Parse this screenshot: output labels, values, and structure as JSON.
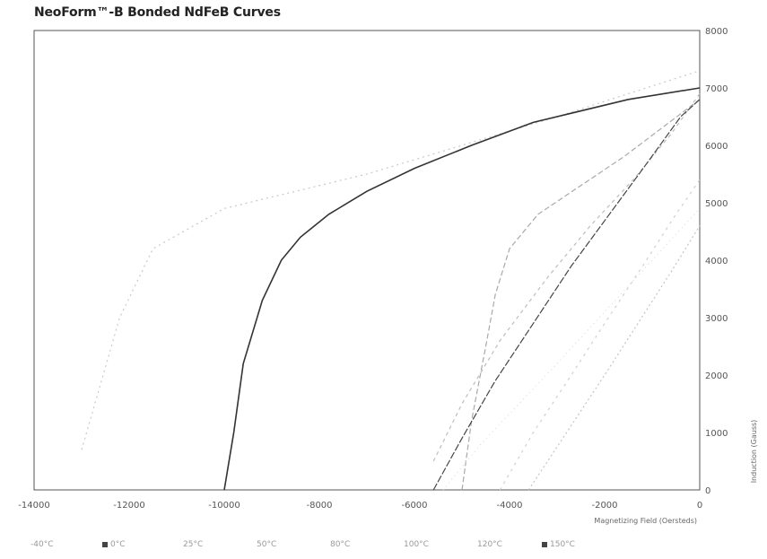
{
  "chart_data": {
    "type": "line",
    "title": "NeoForm™-B Bonded NdFeB Curves",
    "xlabel": "Magnetizing Field (Oersteds)",
    "ylabel": "Induction (Gauss)",
    "xlim": [
      -14000,
      0
    ],
    "ylim": [
      0,
      8000
    ],
    "x_ticks": [
      "-14000",
      "-12000",
      "-10000",
      "-8000",
      "-6000",
      "-4000",
      "-2000",
      "0"
    ],
    "y_ticks": [
      "0",
      "1000",
      "2000",
      "3000",
      "4000",
      "5000",
      "6000",
      "7000",
      "8000"
    ],
    "grid": false,
    "legend_position": "bottom",
    "series": [
      {
        "name": "-40°C",
        "color": "#c8c8c8",
        "dash": "2,4",
        "points": [
          [
            -13000,
            700
          ],
          [
            -12200,
            3000
          ],
          [
            -11500,
            4200
          ],
          [
            -10000,
            4900
          ],
          [
            -9000,
            5100
          ],
          [
            -7000,
            5500
          ],
          [
            -5000,
            6000
          ],
          [
            -3000,
            6500
          ],
          [
            0,
            7300
          ]
        ]
      },
      {
        "name": "0°C",
        "color": "#333333",
        "dash": "",
        "points": [
          [
            -10000,
            0
          ],
          [
            -9800,
            1000
          ],
          [
            -9600,
            2200
          ],
          [
            -9200,
            3300
          ],
          [
            -8800,
            4000
          ],
          [
            -8400,
            4400
          ],
          [
            -7800,
            4800
          ],
          [
            -7000,
            5200
          ],
          [
            -6000,
            5600
          ],
          [
            -4800,
            6000
          ],
          [
            -3500,
            6400
          ],
          [
            -1500,
            6800
          ],
          [
            0,
            7000
          ]
        ]
      },
      {
        "name": "25°C",
        "color": "#bdbdbd",
        "dash": "4,4",
        "points": [
          [
            -5600,
            500
          ],
          [
            -5000,
            1500
          ],
          [
            -4200,
            2600
          ],
          [
            -3200,
            3700
          ],
          [
            -2300,
            4600
          ],
          [
            -1400,
            5400
          ],
          [
            -600,
            6200
          ],
          [
            0,
            6900
          ]
        ]
      },
      {
        "name": "50°C",
        "color": "#a9a9a9",
        "dash": "6,3",
        "points": [
          [
            -5000,
            0
          ],
          [
            -4800,
            1200
          ],
          [
            -4500,
            2500
          ],
          [
            -4300,
            3400
          ],
          [
            -4000,
            4200
          ],
          [
            -3400,
            4800
          ],
          [
            -2500,
            5300
          ],
          [
            -1600,
            5800
          ],
          [
            -800,
            6300
          ],
          [
            0,
            6800
          ]
        ]
      },
      {
        "name": "80°C",
        "color": "#444444",
        "dash": "8,2",
        "points": [
          [
            -5600,
            0
          ],
          [
            -5000,
            900
          ],
          [
            -4300,
            1900
          ],
          [
            -3500,
            2900
          ],
          [
            -2700,
            3900
          ],
          [
            -1900,
            4800
          ],
          [
            -1100,
            5700
          ],
          [
            -400,
            6500
          ],
          [
            0,
            6800
          ]
        ]
      },
      {
        "name": "100°C",
        "color": "#d0d0d0",
        "dash": "3,5",
        "points": [
          [
            -4200,
            0
          ],
          [
            -3500,
            1000
          ],
          [
            -2700,
            2000
          ],
          [
            -2000,
            2900
          ],
          [
            -1200,
            3900
          ],
          [
            -500,
            4800
          ],
          [
            0,
            5400
          ]
        ]
      },
      {
        "name": "120°C",
        "color": "#c4c4c4",
        "dash": "2,3",
        "points": [
          [
            -3600,
            0
          ],
          [
            -2800,
            1000
          ],
          [
            -2000,
            2000
          ],
          [
            -1300,
            2900
          ],
          [
            -600,
            3800
          ],
          [
            0,
            4600
          ]
        ]
      },
      {
        "name": "150°C",
        "color": "#dcdcdc",
        "dash": "1,4",
        "points": [
          [
            -5400,
            0
          ],
          [
            -4600,
            800
          ],
          [
            -3800,
            1500
          ],
          [
            -3000,
            2200
          ],
          [
            -2000,
            3100
          ],
          [
            -1000,
            4000
          ],
          [
            0,
            4900
          ]
        ]
      }
    ]
  },
  "legend": [
    {
      "label": "-40°C",
      "swatch": false
    },
    {
      "label": "0°C",
      "swatch": true
    },
    {
      "label": "25°C",
      "swatch": false
    },
    {
      "label": "50°C",
      "swatch": false
    },
    {
      "label": "80°C",
      "swatch": false
    },
    {
      "label": "100°C",
      "swatch": false
    },
    {
      "label": "120°C",
      "swatch": false
    },
    {
      "label": "150°C",
      "swatch": true
    }
  ]
}
